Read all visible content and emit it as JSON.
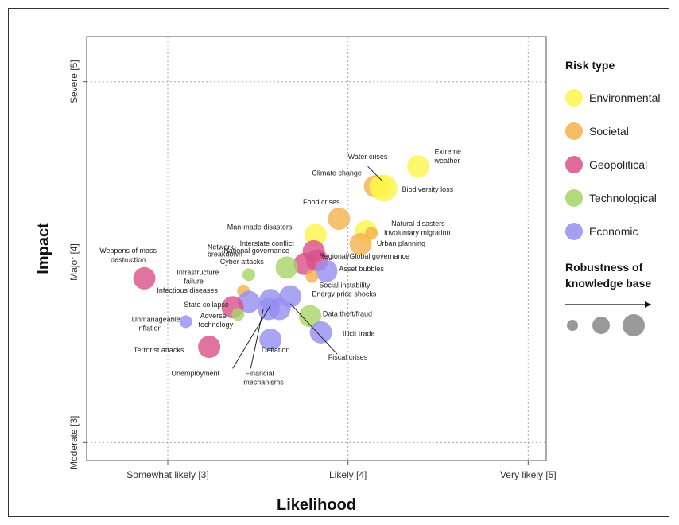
{
  "chart_data": {
    "type": "scatter",
    "title": "",
    "xlabel": "Likelihood",
    "ylabel": "Impact",
    "xlim": [
      2.55,
      5.1
    ],
    "ylim": [
      2.9,
      5.25
    ],
    "x_ticks": [
      {
        "value": 3,
        "label": "Somewhat likely [3]"
      },
      {
        "value": 4,
        "label": "Likely [4]"
      },
      {
        "value": 5,
        "label": "Very likely [5]"
      }
    ],
    "y_ticks": [
      {
        "value": 3,
        "label": "Moderate [3]"
      },
      {
        "value": 4,
        "label": "Major [4]"
      },
      {
        "value": 5,
        "label": "Severe [5]"
      }
    ],
    "grid": "dotted at major ticks",
    "legend": {
      "title": "Risk type",
      "placement": "right",
      "items": [
        {
          "name": "Environmental",
          "color": "#fdf54a"
        },
        {
          "name": "Societal",
          "color": "#f5b24f"
        },
        {
          "name": "Geopolitical",
          "color": "#d9508a"
        },
        {
          "name": "Technological",
          "color": "#a6d567"
        },
        {
          "name": "Economic",
          "color": "#948ef0"
        }
      ],
      "size_title": "Robustness of knowledge base",
      "size_levels": [
        1,
        2,
        3
      ]
    },
    "colors": {
      "Environmental": "#fdf54a",
      "Societal": "#f5b24f",
      "Geopolitical": "#d9508a",
      "Technological": "#a6d567",
      "Economic": "#948ef0"
    },
    "points": [
      {
        "label": "Extreme weather",
        "type": "Environmental",
        "x": 4.39,
        "y": 4.53,
        "robustness": 2
      },
      {
        "label": "Water crises",
        "type": "Societal",
        "x": 4.15,
        "y": 4.42,
        "robustness": 2
      },
      {
        "label": "Climate change",
        "type": "Environmental",
        "x": 4.2,
        "y": 4.41,
        "robustness": 3
      },
      {
        "label": "Biodiversity loss",
        "type": "Environmental",
        "x": 4.18,
        "y": 4.42,
        "robustness": 2
      },
      {
        "label": "Food crises",
        "type": "Societal",
        "x": 3.95,
        "y": 4.24,
        "robustness": 2
      },
      {
        "label": "Natural disasters",
        "type": "Environmental",
        "x": 4.1,
        "y": 4.17,
        "robustness": 2
      },
      {
        "label": "Involuntary migration",
        "type": "Societal",
        "x": 4.13,
        "y": 4.16,
        "robustness": 1
      },
      {
        "label": "Urban planning",
        "type": "Societal",
        "x": 4.07,
        "y": 4.1,
        "robustness": 2
      },
      {
        "label": "Man-made disasters",
        "type": "Environmental",
        "x": 3.82,
        "y": 4.15,
        "robustness": 2
      },
      {
        "label": "Interstate conflict",
        "type": "Geopolitical",
        "x": 3.81,
        "y": 4.06,
        "robustness": 2
      },
      {
        "label": "National governance",
        "type": "Geopolitical",
        "x": 3.83,
        "y": 4.01,
        "robustness": 2
      },
      {
        "label": "Regional/Global governance",
        "type": "Geopolitical",
        "x": 3.76,
        "y": 3.99,
        "robustness": 2
      },
      {
        "label": "Asset bubbles",
        "type": "Economic",
        "x": 3.88,
        "y": 3.95,
        "robustness": 2
      },
      {
        "label": "Social instability",
        "type": "Societal",
        "x": 3.8,
        "y": 3.92,
        "robustness": 1
      },
      {
        "label": "Cyber attacks",
        "type": "Technological",
        "x": 3.66,
        "y": 3.97,
        "robustness": 2
      },
      {
        "label": "Network breakdown",
        "type": "Technological",
        "x": 3.45,
        "y": 3.93,
        "robustness": 1
      },
      {
        "label": "Infrastructure failure",
        "type": "Societal",
        "x": 3.42,
        "y": 3.84,
        "robustness": 1
      },
      {
        "label": "Weapons of mass destruction",
        "type": "Geopolitical",
        "x": 2.87,
        "y": 3.91,
        "robustness": 2
      },
      {
        "label": "Infectious diseases",
        "type": "Economic",
        "x": 3.45,
        "y": 3.78,
        "robustness": 2
      },
      {
        "label": "Energy price shocks",
        "type": "Economic",
        "x": 3.68,
        "y": 3.81,
        "robustness": 2
      },
      {
        "label": "Energy price shocks",
        "type": "Economic",
        "x": 3.57,
        "y": 3.79,
        "robustness": 2
      },
      {
        "label": "State collapse",
        "type": "Geopolitical",
        "x": 3.36,
        "y": 3.75,
        "robustness": 2
      },
      {
        "label": "Adverse technology",
        "type": "Technological",
        "x": 3.39,
        "y": 3.71,
        "robustness": 1
      },
      {
        "label": "Data fraud/theft",
        "type": "Technological",
        "x": 3.79,
        "y": 3.7,
        "robustness": 2
      },
      {
        "label": "Energy price shocks",
        "type": "Economic",
        "x": 3.56,
        "y": 3.74,
        "robustness": 2
      },
      {
        "label": "Energy price shocks",
        "type": "Economic",
        "x": 3.62,
        "y": 3.74,
        "robustness": 2
      },
      {
        "label": "Unmanageable inflation",
        "type": "Economic",
        "x": 3.1,
        "y": 3.67,
        "robustness": 1
      },
      {
        "label": "Illicit trade",
        "type": "Economic",
        "x": 3.85,
        "y": 3.61,
        "robustness": 2
      },
      {
        "label": "Deflation",
        "type": "Economic",
        "x": 3.57,
        "y": 3.57,
        "robustness": 2
      },
      {
        "label": "Terrorist attacks",
        "type": "Geopolitical",
        "x": 3.23,
        "y": 3.53,
        "robustness": 2
      }
    ],
    "annotations": [
      {
        "text": "Extreme",
        "x": 4.48,
        "y": 4.6,
        "anchor": "start"
      },
      {
        "text": "weather",
        "x": 4.48,
        "y": 4.55,
        "anchor": "start"
      },
      {
        "text": "Water crises",
        "x": 4.0,
        "y": 4.57,
        "anchor": "start"
      },
      {
        "text": "Climate change",
        "x": 3.8,
        "y": 4.48,
        "anchor": "start"
      },
      {
        "text": "Biodiversity loss",
        "x": 4.3,
        "y": 4.39,
        "anchor": "start"
      },
      {
        "text": "Food crises",
        "x": 3.75,
        "y": 4.32,
        "anchor": "start"
      },
      {
        "text": "Natural disasters",
        "x": 4.24,
        "y": 4.2,
        "anchor": "start"
      },
      {
        "text": "Involuntary migration",
        "x": 4.2,
        "y": 4.15,
        "anchor": "start"
      },
      {
        "text": "Urban planning",
        "x": 4.16,
        "y": 4.09,
        "anchor": "start"
      },
      {
        "text": "Man-made disasters",
        "x": 3.33,
        "y": 4.18,
        "anchor": "start"
      },
      {
        "text": "Interstate conflict",
        "x": 3.4,
        "y": 4.09,
        "anchor": "start"
      },
      {
        "text": "National governance",
        "x": 3.31,
        "y": 4.05,
        "anchor": "start"
      },
      {
        "text": "Regional/Global governance",
        "x": 3.84,
        "y": 4.02,
        "anchor": "start"
      },
      {
        "text": "Asset bubbles",
        "x": 3.95,
        "y": 3.95,
        "anchor": "start"
      },
      {
        "text": "Social instability",
        "x": 3.84,
        "y": 3.86,
        "anchor": "start"
      },
      {
        "text": "Energy price shocks",
        "x": 3.8,
        "y": 3.81,
        "anchor": "start"
      },
      {
        "text": "Cyber attacks",
        "x": 3.29,
        "y": 3.99,
        "anchor": "start"
      },
      {
        "text": "Network",
        "x": 3.22,
        "y": 4.07,
        "anchor": "start"
      },
      {
        "text": "breakdown",
        "x": 3.22,
        "y": 4.03,
        "anchor": "start"
      },
      {
        "text": "Weapons of mass",
        "x": 2.78,
        "y": 4.05,
        "anchor": "middle"
      },
      {
        "text": "destruction",
        "x": 2.78,
        "y": 4.0,
        "anchor": "middle"
      },
      {
        "text": "Infrastructure",
        "x": 3.05,
        "y": 3.93,
        "anchor": "start"
      },
      {
        "text": "failure",
        "x": 3.09,
        "y": 3.88,
        "anchor": "start"
      },
      {
        "text": "Infectious diseases",
        "x": 2.94,
        "y": 3.83,
        "anchor": "start"
      },
      {
        "text": "State collapse",
        "x": 3.09,
        "y": 3.75,
        "anchor": "start"
      },
      {
        "text": "Adverse",
        "x": 3.18,
        "y": 3.69,
        "anchor": "start"
      },
      {
        "text": "technology",
        "x": 3.17,
        "y": 3.64,
        "anchor": "start"
      },
      {
        "text": "Data theft/fraud",
        "x": 3.86,
        "y": 3.7,
        "anchor": "start"
      },
      {
        "text": "Unmanageable",
        "x": 2.8,
        "y": 3.67,
        "anchor": "start"
      },
      {
        "text": "inflation",
        "x": 2.83,
        "y": 3.62,
        "anchor": "start"
      },
      {
        "text": "Illicit trade",
        "x": 3.97,
        "y": 3.59,
        "anchor": "start"
      },
      {
        "text": "Deflation",
        "x": 3.52,
        "y": 3.5,
        "anchor": "start"
      },
      {
        "text": "Fiscal crises",
        "x": 3.89,
        "y": 3.46,
        "anchor": "start"
      },
      {
        "text": "Terrorist attacks",
        "x": 2.81,
        "y": 3.5,
        "anchor": "start"
      },
      {
        "text": "Unemployment",
        "x": 3.02,
        "y": 3.37,
        "anchor": "start"
      },
      {
        "text": "Financial",
        "x": 3.43,
        "y": 3.37,
        "anchor": "start"
      },
      {
        "text": "mechanisms",
        "x": 3.42,
        "y": 3.32,
        "anchor": "start"
      }
    ],
    "leader_lines": [
      {
        "from": [
          4.11,
          4.53
        ],
        "to": [
          4.19,
          4.45
        ]
      },
      {
        "from": [
          3.36,
          3.41
        ],
        "to": [
          3.57,
          3.76
        ]
      },
      {
        "from": [
          3.46,
          3.41
        ],
        "to": [
          3.53,
          3.74
        ]
      },
      {
        "from": [
          3.94,
          3.49
        ],
        "to": [
          3.68,
          3.77
        ]
      }
    ]
  }
}
